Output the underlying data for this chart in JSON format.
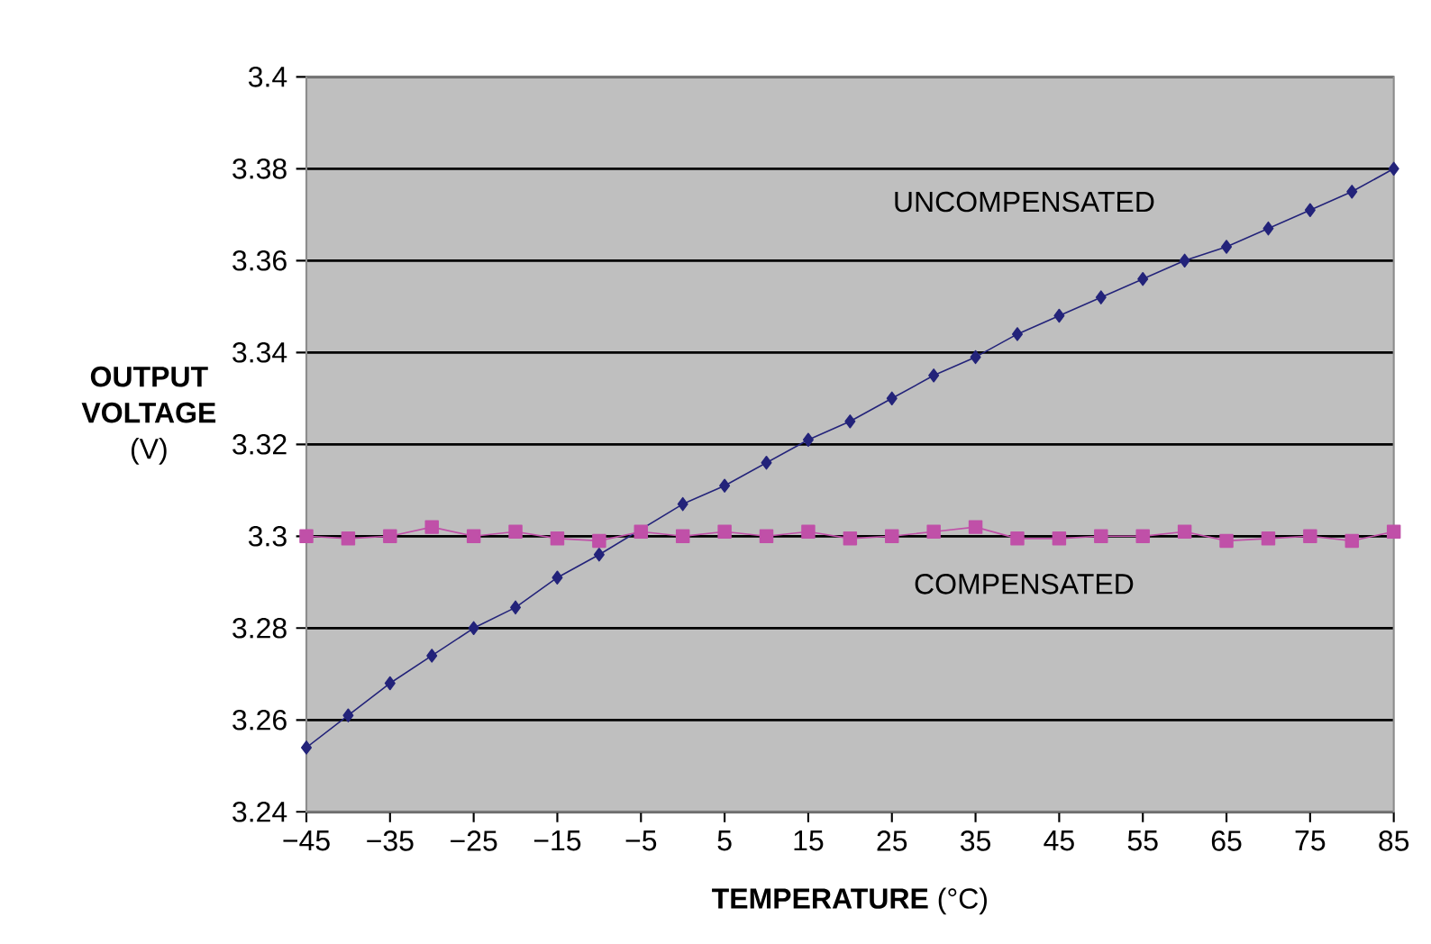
{
  "chart_data": {
    "type": "line",
    "xlabel": "**TEMPERATURE** (°C)",
    "ylabel": "**OUTPUT VOLTAGE** (V)",
    "x": [
      -45,
      -40,
      -35,
      -30,
      -25,
      -20,
      -15,
      -10,
      -5,
      0,
      5,
      10,
      15,
      20,
      25,
      30,
      35,
      40,
      45,
      50,
      55,
      60,
      65,
      70,
      75,
      80,
      85
    ],
    "series": [
      {
        "name": "UNCOMPENSATED",
        "color": "#23237a",
        "marker": "diamond",
        "values": [
          3.254,
          3.261,
          3.268,
          3.274,
          3.28,
          3.2845,
          3.291,
          3.296,
          null,
          3.307,
          3.311,
          3.316,
          3.321,
          3.325,
          3.33,
          3.335,
          3.339,
          3.344,
          3.348,
          3.352,
          3.356,
          3.36,
          3.363,
          3.367,
          3.371,
          3.375,
          3.38
        ]
      },
      {
        "name": "COMPENSATED",
        "color": "#c050a8",
        "marker": "square",
        "values": [
          3.3,
          3.2995,
          3.3,
          3.302,
          3.3,
          3.301,
          3.2995,
          3.299,
          3.301,
          3.3,
          3.301,
          3.3,
          3.301,
          3.2995,
          3.3,
          3.301,
          3.302,
          3.2995,
          3.2995,
          3.3,
          3.3,
          3.301,
          3.299,
          3.2995,
          3.3,
          3.299,
          3.301
        ]
      }
    ],
    "xlim": [
      -45,
      85
    ],
    "xticks": [
      {
        "value": -45,
        "label": "−45"
      },
      {
        "value": -35,
        "label": "−35"
      },
      {
        "value": -25,
        "label": "−25"
      },
      {
        "value": -15,
        "label": "−15"
      },
      {
        "value": -5,
        "label": "−5"
      },
      5,
      15,
      25,
      35,
      45,
      55,
      65,
      75,
      85
    ],
    "ylim": [
      3.24,
      3.4
    ],
    "yticks": [
      3.24,
      3.26,
      3.28,
      3.3,
      3.32,
      3.34,
      3.36,
      3.38,
      3.4
    ],
    "grid": "y",
    "line_style": "solid"
  }
}
